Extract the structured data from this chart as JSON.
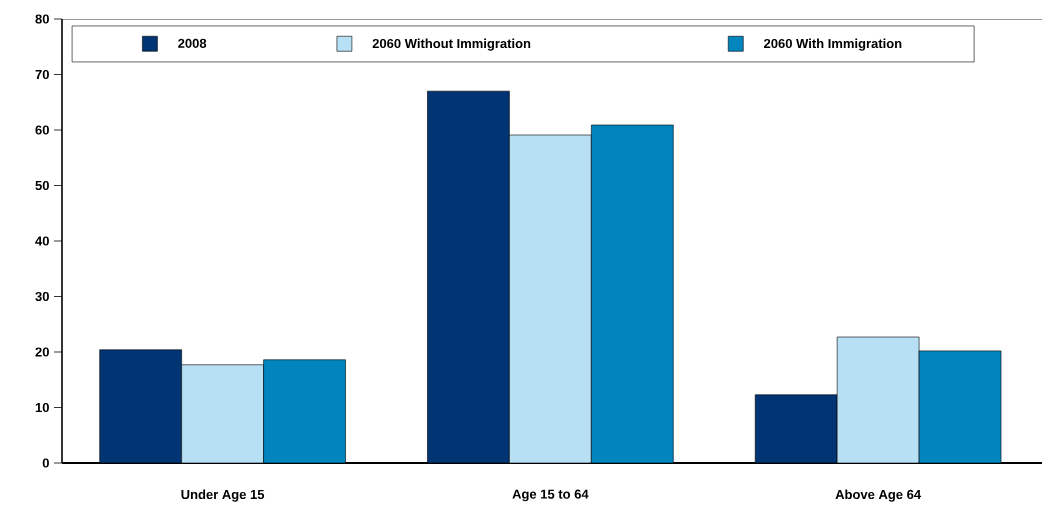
{
  "chart_data": {
    "type": "bar",
    "categories": [
      "Under Age 15",
      "Age 15 to 64",
      "Above Age 64"
    ],
    "series": [
      {
        "name": "2008",
        "color": "#003473",
        "values": [
          20.4,
          67.0,
          12.3
        ]
      },
      {
        "name": "2060 Without Immigration",
        "color": "#b8e0f5",
        "values": [
          17.7,
          59.1,
          22.7
        ]
      },
      {
        "name": "2060 With Immigration",
        "color": "#0085bf",
        "values": [
          18.6,
          60.9,
          20.2
        ]
      }
    ],
    "ylim": [
      0,
      80
    ],
    "yticks": [
      0,
      10,
      20,
      30,
      40,
      50,
      60,
      70,
      80
    ],
    "grid": false,
    "legend": "top"
  }
}
